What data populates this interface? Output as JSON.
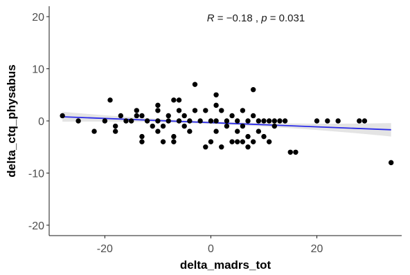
{
  "chart_data": {
    "type": "scatter",
    "title": "",
    "xlabel": "delta_madrs_tot",
    "ylabel": "delta_ctq_physabus",
    "xlim": [
      -30.5,
      36
    ],
    "ylim": [
      -22,
      22
    ],
    "xticks": [
      -20,
      0,
      20
    ],
    "xtick_labels": [
      "-20",
      "0",
      "20"
    ],
    "yticks": [
      -20,
      -10,
      0,
      10,
      20
    ],
    "ytick_labels": [
      "-20",
      "-10",
      "0",
      "10",
      "20"
    ],
    "grid": false,
    "annotation": {
      "r_label": "R",
      "r_sep": " = ",
      "r_value": "−0.18",
      "comma": " , ",
      "p_label": "p",
      "p_sep": " = ",
      "p_value": "0.031"
    },
    "regression": {
      "x": [
        -28,
        34
      ],
      "y": [
        0.8,
        -1.7
      ],
      "color": "#2a2ae8",
      "band_color": "#d9d9d9"
    },
    "point_color": "#000000",
    "points": [
      {
        "x": -28,
        "y": 1
      },
      {
        "x": -25,
        "y": 0
      },
      {
        "x": -22,
        "y": -2
      },
      {
        "x": -20,
        "y": 0
      },
      {
        "x": -19,
        "y": 4
      },
      {
        "x": -18,
        "y": -1
      },
      {
        "x": -18,
        "y": -2
      },
      {
        "x": -17,
        "y": 1
      },
      {
        "x": -16,
        "y": 0
      },
      {
        "x": -15,
        "y": 0
      },
      {
        "x": -14,
        "y": 2
      },
      {
        "x": -14,
        "y": 1
      },
      {
        "x": -13,
        "y": -3
      },
      {
        "x": -13,
        "y": -4
      },
      {
        "x": -13,
        "y": 1
      },
      {
        "x": -12,
        "y": 0
      },
      {
        "x": -11,
        "y": -1
      },
      {
        "x": -10,
        "y": 3
      },
      {
        "x": -10,
        "y": 2
      },
      {
        "x": -10,
        "y": 0
      },
      {
        "x": -10,
        "y": -2
      },
      {
        "x": -9,
        "y": -1
      },
      {
        "x": -9,
        "y": -4
      },
      {
        "x": -8,
        "y": 1
      },
      {
        "x": -8,
        "y": 0
      },
      {
        "x": -7,
        "y": 4
      },
      {
        "x": -7,
        "y": -3
      },
      {
        "x": -7,
        "y": -4
      },
      {
        "x": -6,
        "y": 4
      },
      {
        "x": -6,
        "y": 2
      },
      {
        "x": -6,
        "y": 0
      },
      {
        "x": -5,
        "y": 1
      },
      {
        "x": -5,
        "y": -1
      },
      {
        "x": -4,
        "y": 0
      },
      {
        "x": -4,
        "y": -2
      },
      {
        "x": -3,
        "y": 7
      },
      {
        "x": -3,
        "y": 2
      },
      {
        "x": -2,
        "y": 0
      },
      {
        "x": -1,
        "y": 2
      },
      {
        "x": -1,
        "y": -5
      },
      {
        "x": 0,
        "y": 0
      },
      {
        "x": 0,
        "y": -4
      },
      {
        "x": 1,
        "y": 5
      },
      {
        "x": 1,
        "y": 3
      },
      {
        "x": 1,
        "y": 0
      },
      {
        "x": 1,
        "y": -2
      },
      {
        "x": 2,
        "y": 2
      },
      {
        "x": 2,
        "y": -5
      },
      {
        "x": 3,
        "y": 0
      },
      {
        "x": 3,
        "y": -1
      },
      {
        "x": 4,
        "y": 1
      },
      {
        "x": 4,
        "y": -4
      },
      {
        "x": 5,
        "y": 0
      },
      {
        "x": 5,
        "y": -2
      },
      {
        "x": 5,
        "y": -4
      },
      {
        "x": 6,
        "y": 2
      },
      {
        "x": 6,
        "y": -1
      },
      {
        "x": 6,
        "y": -4
      },
      {
        "x": 7,
        "y": 0
      },
      {
        "x": 7,
        "y": -5
      },
      {
        "x": 7,
        "y": -3
      },
      {
        "x": 8,
        "y": 6
      },
      {
        "x": 8,
        "y": 1
      },
      {
        "x": 8,
        "y": -4
      },
      {
        "x": 9,
        "y": 0
      },
      {
        "x": 9,
        "y": -2
      },
      {
        "x": 10,
        "y": 0
      },
      {
        "x": 10,
        "y": -3
      },
      {
        "x": 11,
        "y": 0
      },
      {
        "x": 11,
        "y": -4
      },
      {
        "x": 12,
        "y": 0
      },
      {
        "x": 12,
        "y": -1
      },
      {
        "x": 13,
        "y": 0
      },
      {
        "x": 14,
        "y": 0
      },
      {
        "x": 15,
        "y": -6
      },
      {
        "x": 16,
        "y": -6
      },
      {
        "x": 20,
        "y": 0
      },
      {
        "x": 22,
        "y": 0
      },
      {
        "x": 24,
        "y": 0
      },
      {
        "x": 28,
        "y": 0
      },
      {
        "x": 29,
        "y": 0
      },
      {
        "x": 34,
        "y": -8
      }
    ]
  }
}
